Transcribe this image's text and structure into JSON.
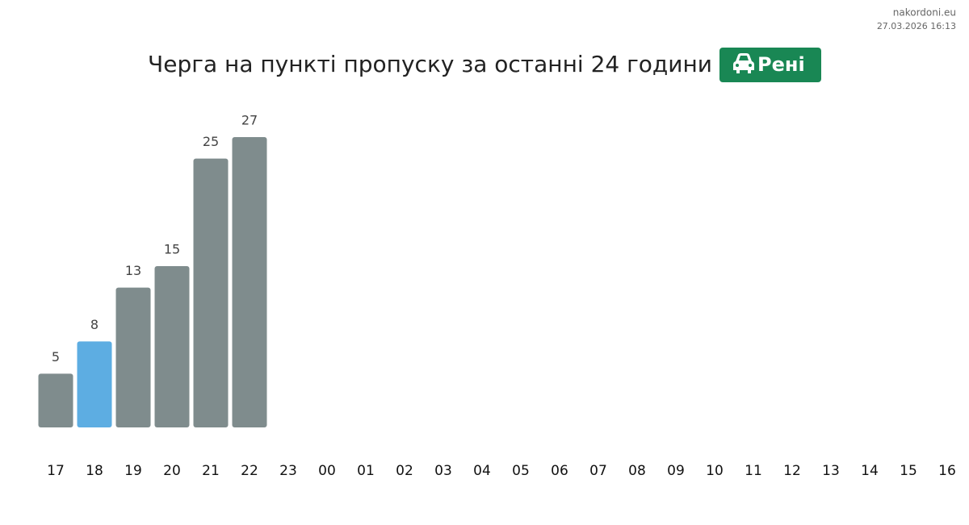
{
  "site": "nakordoni.eu",
  "timestamp": "27.03.2026 16:13",
  "chart_data": {
    "type": "bar",
    "title": "Черга на пункті пропуску за останні 24 години",
    "badge": "Рені",
    "categories": [
      "17",
      "18",
      "19",
      "20",
      "21",
      "22",
      "23",
      "00",
      "01",
      "02",
      "03",
      "04",
      "05",
      "06",
      "07",
      "08",
      "09",
      "10",
      "11",
      "12",
      "13",
      "14",
      "15",
      "16"
    ],
    "values": [
      5,
      8,
      13,
      15,
      25,
      27,
      null,
      null,
      null,
      null,
      null,
      null,
      null,
      null,
      null,
      null,
      null,
      null,
      null,
      null,
      null,
      null,
      null,
      null
    ],
    "colors": [
      "#7f8c8d",
      "#5dade2",
      "#7f8c8d",
      "#7f8c8d",
      "#7f8c8d",
      "#7f8c8d",
      null,
      null,
      null,
      null,
      null,
      null,
      null,
      null,
      null,
      null,
      null,
      null,
      null,
      null,
      null,
      null,
      null,
      null
    ]
  }
}
